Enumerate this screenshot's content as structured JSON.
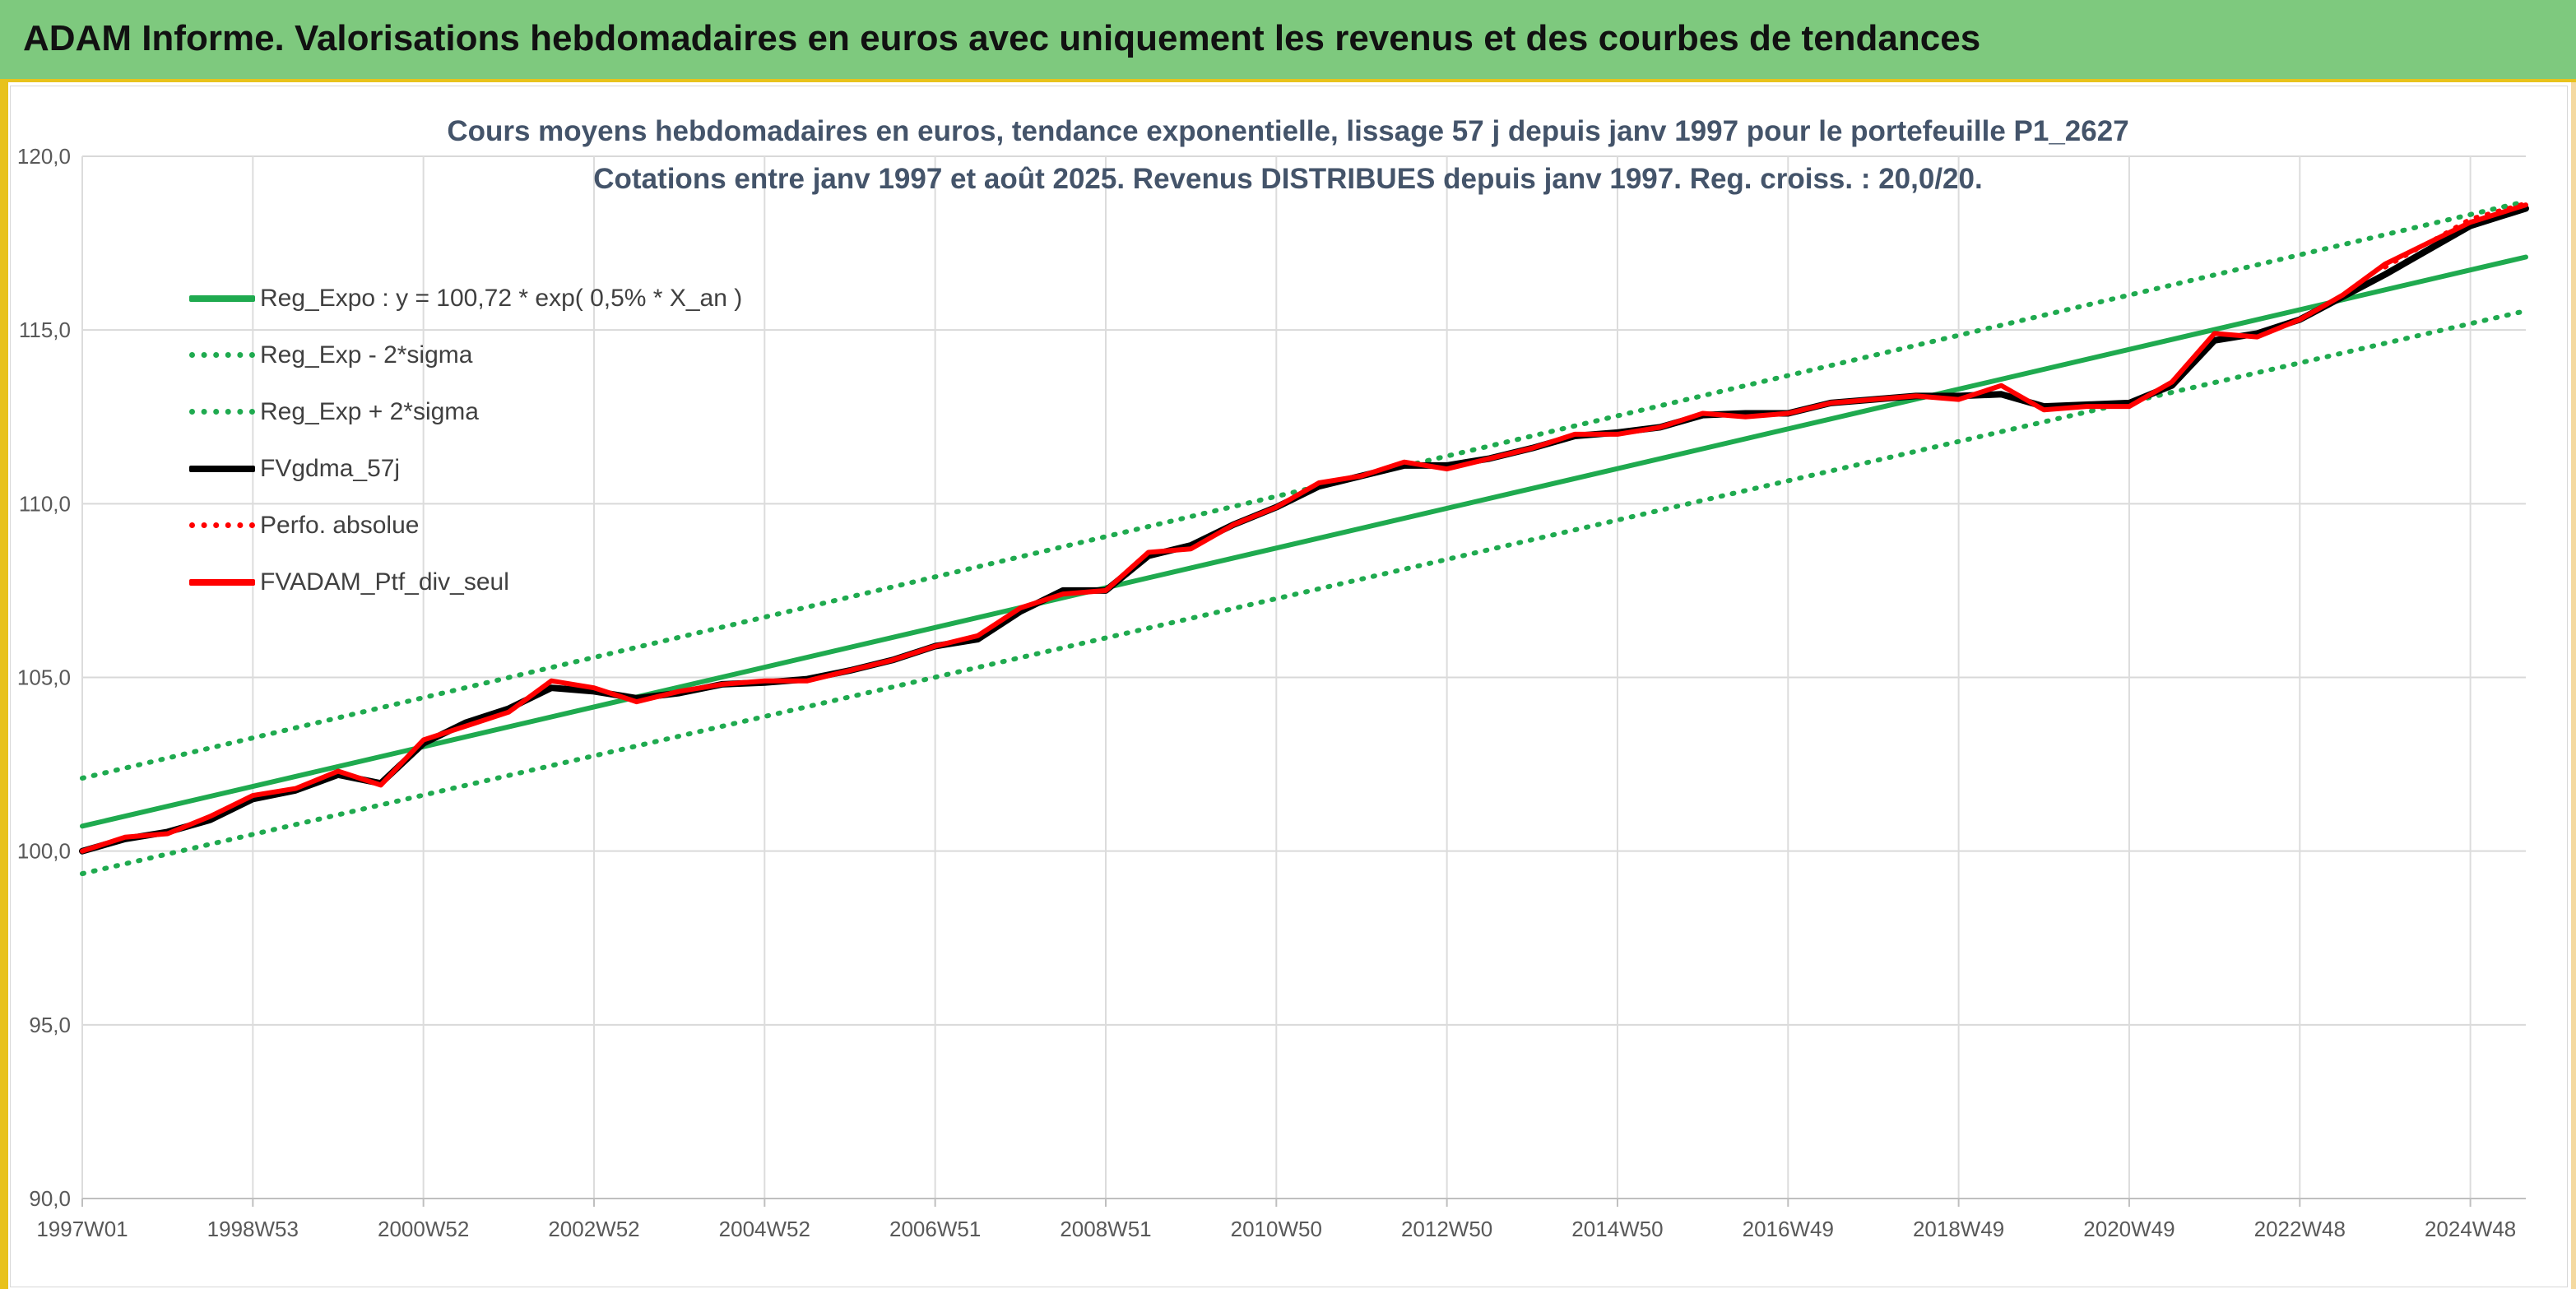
{
  "header": {
    "title": "ADAM Informe. Valorisations hebdomadaires en euros avec uniquement les revenus et des courbes de tendances"
  },
  "chart_data": {
    "type": "line",
    "title": "Cours moyens hebdomadaires en euros, tendance exponentielle, lissage 57 j depuis janv 1997 pour le portefeuille P1_2627",
    "subtitle": "Cotations entre janv 1997 et août 2025. Revenus DISTRIBUES depuis janv 1997. Reg. croiss. : 20,0/20.",
    "xlabel": "",
    "ylabel": "",
    "ylim": [
      90,
      120
    ],
    "yticks": [
      "90,0",
      "95,0",
      "100,0",
      "105,0",
      "110,0",
      "115,0",
      "120,0"
    ],
    "ytick_values": [
      90,
      95,
      100,
      105,
      110,
      115,
      120
    ],
    "xlim": [
      1997.0,
      2025.65
    ],
    "xticks": [
      "1997W01",
      "1998W53",
      "2000W52",
      "2002W52",
      "2004W52",
      "2006W51",
      "2008W51",
      "2010W50",
      "2012W50",
      "2014W50",
      "2016W49",
      "2018W49",
      "2020W49",
      "2022W48",
      "2024W48"
    ],
    "xtick_values": [
      1997.0,
      1999.0,
      2001.0,
      2003.0,
      2005.0,
      2007.0,
      2009.0,
      2011.0,
      2013.0,
      2015.0,
      2017.0,
      2019.0,
      2021.0,
      2023.0,
      2025.0
    ],
    "grid": "vertical",
    "legend_position": "top-left",
    "series": [
      {
        "name": "Reg_Expo : y = 100,72 * exp( 0,5% *  X_an )",
        "style": "solid",
        "color": "#1faa4f",
        "width": 6,
        "x": [
          1997.0,
          2025.65
        ],
        "y": [
          100.72,
          117.1
        ]
      },
      {
        "name": "Reg_Exp - 2*sigma",
        "style": "dotted",
        "color": "#1faa4f",
        "width": 6,
        "x": [
          1997.0,
          2025.65
        ],
        "y": [
          99.35,
          115.55
        ]
      },
      {
        "name": "Reg_Exp + 2*sigma",
        "style": "dotted",
        "color": "#1faa4f",
        "width": 6,
        "x": [
          1997.0,
          2025.65
        ],
        "y": [
          102.1,
          118.7
        ]
      },
      {
        "name": "FVgdma_57j",
        "style": "solid",
        "color": "#000000",
        "width": 8,
        "x": [
          1997.0,
          1997.5,
          1998.0,
          1998.5,
          1999.0,
          1999.5,
          2000.0,
          2000.5,
          2001.0,
          2001.5,
          2002.0,
          2002.5,
          2003.0,
          2003.5,
          2004.0,
          2004.5,
          2005.0,
          2005.5,
          2006.0,
          2006.5,
          2007.0,
          2007.5,
          2008.0,
          2008.5,
          2009.0,
          2009.5,
          2010.0,
          2010.5,
          2011.0,
          2011.5,
          2012.0,
          2012.5,
          2013.0,
          2013.5,
          2014.0,
          2014.5,
          2015.0,
          2015.5,
          2016.0,
          2016.5,
          2017.0,
          2017.5,
          2018.0,
          2018.5,
          2019.0,
          2019.5,
          2020.0,
          2020.5,
          2021.0,
          2021.5,
          2022.0,
          2022.5,
          2023.0,
          2023.5,
          2024.0,
          2024.5,
          2025.0,
          2025.65
        ],
        "y": [
          100.0,
          100.35,
          100.55,
          100.9,
          101.5,
          101.75,
          102.2,
          101.95,
          103.1,
          103.7,
          104.1,
          104.7,
          104.6,
          104.4,
          104.55,
          104.8,
          104.85,
          104.95,
          105.2,
          105.5,
          105.9,
          106.1,
          106.9,
          107.5,
          107.5,
          108.5,
          108.8,
          109.4,
          109.9,
          110.5,
          110.8,
          111.1,
          111.1,
          111.3,
          111.6,
          111.95,
          112.05,
          112.2,
          112.55,
          112.6,
          112.6,
          112.9,
          113.0,
          113.1,
          113.1,
          113.15,
          112.8,
          112.85,
          112.9,
          113.4,
          114.7,
          114.9,
          115.3,
          115.95,
          116.6,
          117.3,
          118.0,
          118.5
        ]
      },
      {
        "name": "Perfo. absolue",
        "style": "dotted",
        "color": "#ff0000",
        "width": 5,
        "x": [
          2024.0,
          2024.5,
          2025.0,
          2025.65
        ],
        "y": [
          116.8,
          117.5,
          118.2,
          118.65
        ]
      },
      {
        "name": "FVADAM_Ptf_div_seul",
        "style": "solid",
        "color": "#ff0000",
        "width": 6,
        "x": [
          1997.0,
          1997.5,
          1998.0,
          1998.5,
          1999.0,
          1999.5,
          2000.0,
          2000.5,
          2001.0,
          2001.5,
          2002.0,
          2002.5,
          2003.0,
          2003.5,
          2004.0,
          2004.5,
          2005.0,
          2005.5,
          2006.0,
          2006.5,
          2007.0,
          2007.5,
          2008.0,
          2008.5,
          2009.0,
          2009.5,
          2010.0,
          2010.5,
          2011.0,
          2011.5,
          2012.0,
          2012.5,
          2013.0,
          2013.5,
          2014.0,
          2014.5,
          2015.0,
          2015.5,
          2016.0,
          2016.5,
          2017.0,
          2017.5,
          2018.0,
          2018.5,
          2019.0,
          2019.5,
          2020.0,
          2020.5,
          2021.0,
          2021.5,
          2022.0,
          2022.5,
          2023.0,
          2023.5,
          2024.0,
          2024.5,
          2025.0,
          2025.65
        ],
        "y": [
          100.0,
          100.4,
          100.5,
          101.0,
          101.6,
          101.8,
          102.3,
          101.9,
          103.2,
          103.6,
          104.0,
          104.9,
          104.7,
          104.3,
          104.6,
          104.8,
          104.9,
          104.9,
          105.2,
          105.5,
          105.9,
          106.2,
          107.0,
          107.4,
          107.5,
          108.6,
          108.7,
          109.4,
          109.9,
          110.6,
          110.8,
          111.2,
          111.0,
          111.3,
          111.6,
          112.0,
          112.0,
          112.2,
          112.6,
          112.5,
          112.6,
          112.9,
          113.0,
          113.1,
          113.0,
          113.4,
          112.7,
          112.8,
          112.8,
          113.5,
          114.9,
          114.8,
          115.3,
          116.0,
          116.9,
          117.5,
          118.1,
          118.6
        ]
      }
    ]
  }
}
